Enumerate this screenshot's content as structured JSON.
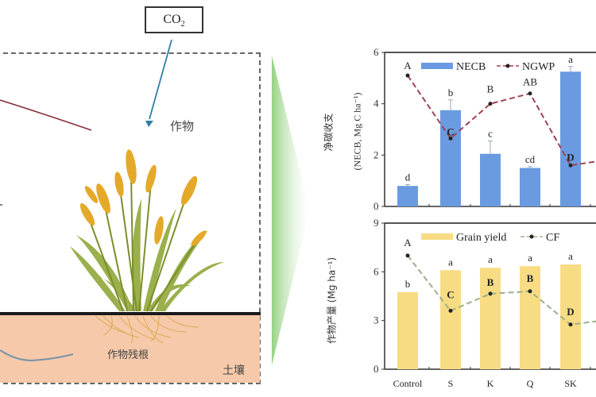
{
  "diagram": {
    "co2_label": "CO",
    "co2_subscript": "2",
    "crop_label": "作物",
    "residue_label": "作物残根",
    "soil_label": "土壤"
  },
  "colors": {
    "necb_bar": "#6a9be0",
    "grain_bar": "#f8dc84",
    "soil": "#f6c9aa",
    "arrow_green": "#8fd07a",
    "co2_arrow": "#2f7fa7",
    "red_line": "#8a2f3a",
    "ngwp_line": "#a0434f",
    "cf_line": "#9bb08b"
  },
  "chart_data": [
    {
      "type": "bar+line",
      "title": "",
      "ylabel_cn": "净碳收支",
      "ylabel": "(NECB, Mg C ha⁻¹)",
      "yticks": [
        "0",
        "2",
        "4",
        "6"
      ],
      "ylim": [
        0,
        6
      ],
      "categories": [
        "Control",
        "S",
        "K",
        "Q",
        "SK"
      ],
      "legend": [
        "NECB",
        "NGWP"
      ],
      "series": [
        {
          "name": "NECB",
          "kind": "bar",
          "values": [
            0.8,
            3.75,
            2.05,
            1.5,
            5.25
          ],
          "errors": [
            0.05,
            0.4,
            0.5,
            0.05,
            0.2
          ],
          "letters": [
            "d",
            "b",
            "c",
            "cd",
            "a"
          ]
        },
        {
          "name": "NGWP",
          "kind": "line",
          "values": [
            5.1,
            2.65,
            4.0,
            4.4,
            1.6
          ],
          "letters": [
            "A",
            "C",
            "B",
            "AB",
            "D"
          ]
        }
      ]
    },
    {
      "type": "bar+line",
      "title": "",
      "ylabel": "作物产量 (Mg ha⁻¹)",
      "yticks": [
        "0",
        "3",
        "6",
        "9"
      ],
      "ylim": [
        0,
        9
      ],
      "categories": [
        "Control",
        "S",
        "K",
        "Q",
        "SK"
      ],
      "legend": [
        "Grain yield",
        "CF"
      ],
      "series": [
        {
          "name": "Grain yield",
          "kind": "bar",
          "values": [
            4.75,
            6.1,
            6.25,
            6.35,
            6.45
          ],
          "letters": [
            "b",
            "a",
            "a",
            "a",
            "a"
          ]
        },
        {
          "name": "CF",
          "kind": "line",
          "values": [
            7.0,
            3.6,
            4.65,
            4.8,
            2.75
          ],
          "letters": [
            "A",
            "C",
            "B",
            "B",
            "D"
          ]
        }
      ]
    }
  ]
}
